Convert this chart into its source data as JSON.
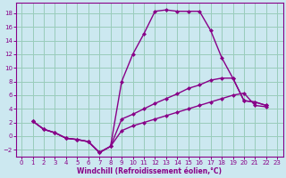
{
  "background_color": "#cce8f0",
  "grid_color": "#99ccbb",
  "line_color": "#880088",
  "xlabel": "Windchill (Refroidissement éolien,°C)",
  "xlim": [
    -0.5,
    23.5
  ],
  "ylim": [
    -3,
    19.5
  ],
  "xticks": [
    0,
    1,
    2,
    3,
    4,
    5,
    6,
    7,
    8,
    9,
    10,
    11,
    12,
    13,
    14,
    15,
    16,
    17,
    18,
    19,
    20,
    21,
    22,
    23
  ],
  "yticks": [
    -2,
    0,
    2,
    4,
    6,
    8,
    10,
    12,
    14,
    16,
    18
  ],
  "curve_high_x": [
    1,
    2,
    3,
    4,
    5,
    6,
    7,
    8,
    9,
    10,
    11,
    12,
    13,
    14,
    15,
    16,
    17,
    18,
    19,
    20,
    21,
    22
  ],
  "curve_high_y": [
    2.2,
    1.0,
    0.5,
    -0.3,
    -0.5,
    -0.8,
    -2.4,
    -1.5,
    8.0,
    12.0,
    15.0,
    18.3,
    18.5,
    18.3,
    18.3,
    18.3,
    15.5,
    11.5,
    8.5,
    5.2,
    5.0,
    4.5
  ],
  "curve_mid_x": [
    1,
    2,
    3,
    4,
    5,
    6,
    7,
    8,
    9,
    10,
    11,
    12,
    13,
    14,
    15,
    16,
    17,
    18,
    19,
    20,
    21,
    22
  ],
  "curve_mid_y": [
    2.2,
    1.0,
    0.5,
    -0.3,
    -0.5,
    -0.8,
    -2.4,
    -1.5,
    2.5,
    3.2,
    4.0,
    4.8,
    5.5,
    6.2,
    7.0,
    7.5,
    8.2,
    8.5,
    8.5,
    5.2,
    5.0,
    4.5
  ],
  "curve_low_x": [
    1,
    2,
    3,
    4,
    5,
    6,
    7,
    8,
    9,
    10,
    11,
    12,
    13,
    14,
    15,
    16,
    17,
    18,
    19,
    20,
    21,
    22
  ],
  "curve_low_y": [
    2.2,
    1.0,
    0.5,
    -0.3,
    -0.5,
    -0.8,
    -2.4,
    -1.5,
    0.8,
    1.5,
    2.0,
    2.5,
    3.0,
    3.5,
    4.0,
    4.5,
    5.0,
    5.5,
    6.0,
    6.3,
    4.5,
    4.3
  ],
  "marker_size": 2.5,
  "line_width": 1.0,
  "tick_fontsize": 5.0,
  "xlabel_fontsize": 5.5
}
